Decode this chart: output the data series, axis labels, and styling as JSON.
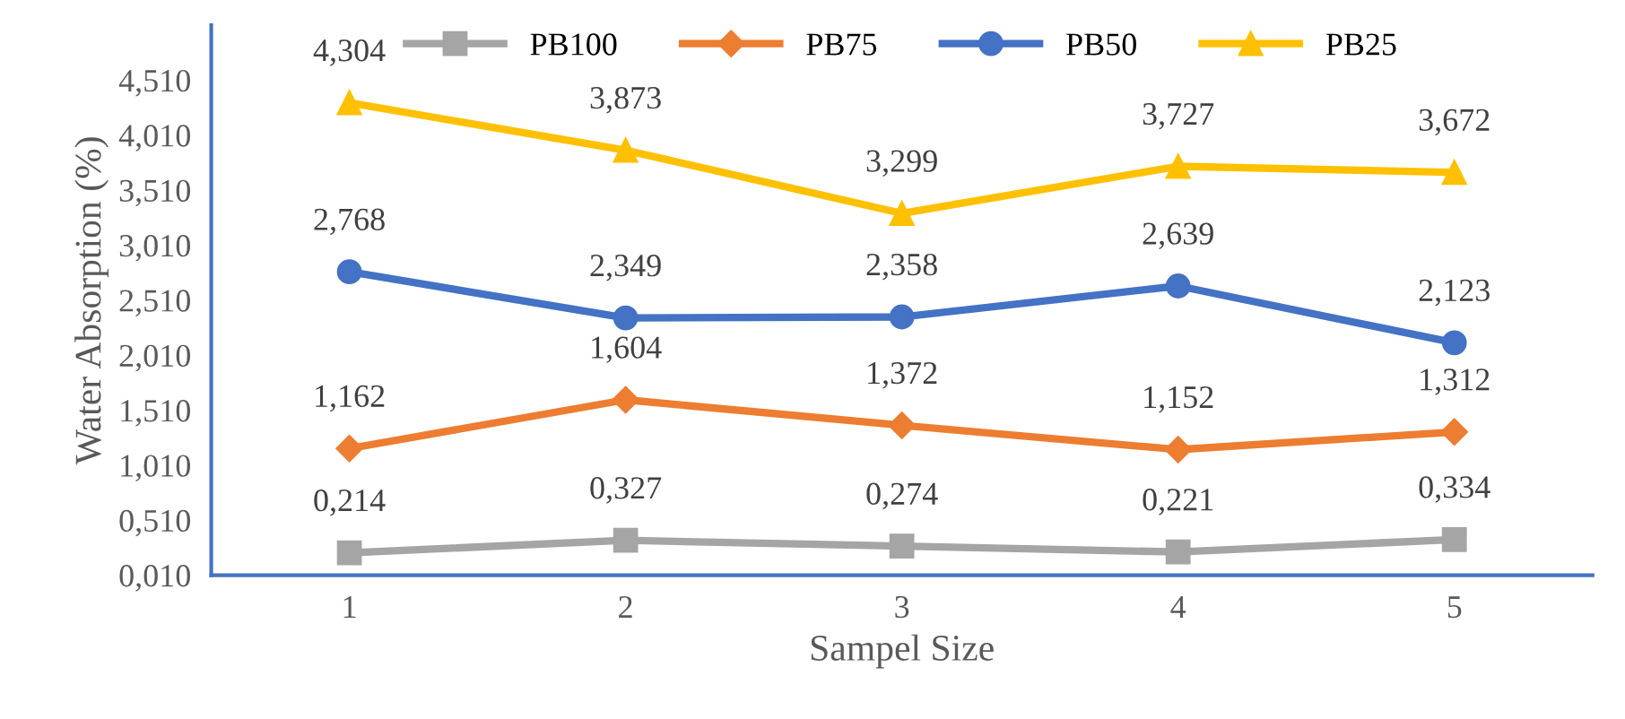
{
  "chart_data": {
    "type": "line",
    "xlabel": "Sampel Size",
    "ylabel": "Water Absorption (%)",
    "categories": [
      "1",
      "2",
      "3",
      "4",
      "5"
    ],
    "ylim": [
      0.01,
      5.01
    ],
    "yticks": [
      {
        "value": 0.01,
        "label": "0,010"
      },
      {
        "value": 0.51,
        "label": "0,510"
      },
      {
        "value": 1.01,
        "label": "1,010"
      },
      {
        "value": 1.51,
        "label": "1,510"
      },
      {
        "value": 2.01,
        "label": "2,010"
      },
      {
        "value": 2.51,
        "label": "2,510"
      },
      {
        "value": 3.01,
        "label": "3,010"
      },
      {
        "value": 3.51,
        "label": "3,510"
      },
      {
        "value": 4.01,
        "label": "4,010"
      },
      {
        "value": 4.51,
        "label": "4,510"
      }
    ],
    "grid": false,
    "legend": "top",
    "series": [
      {
        "name": "PB100",
        "color": "#a5a5a5",
        "marker": "square",
        "values": [
          0.214,
          0.327,
          0.274,
          0.221,
          0.334
        ],
        "value_labels": [
          "0,214",
          "0,327",
          "0,274",
          "0,221",
          "0,334"
        ]
      },
      {
        "name": "PB75",
        "color": "#ed7d31",
        "marker": "diamond",
        "values": [
          1.162,
          1.604,
          1.372,
          1.152,
          1.312
        ],
        "value_labels": [
          "1,162",
          "1,604",
          "1,372",
          "1,152",
          "1,312"
        ]
      },
      {
        "name": "PB50",
        "color": "#4472c4",
        "marker": "circle",
        "values": [
          2.768,
          2.349,
          2.358,
          2.639,
          2.123
        ],
        "value_labels": [
          "2,768",
          "2,349",
          "2,358",
          "2,639",
          "2,123"
        ]
      },
      {
        "name": "PB25",
        "color": "#ffc000",
        "marker": "triangle",
        "values": [
          4.304,
          3.873,
          3.299,
          3.727,
          3.672
        ],
        "value_labels": [
          "4,304",
          "3,873",
          "3,299",
          "3,727",
          "3,672"
        ]
      }
    ]
  }
}
